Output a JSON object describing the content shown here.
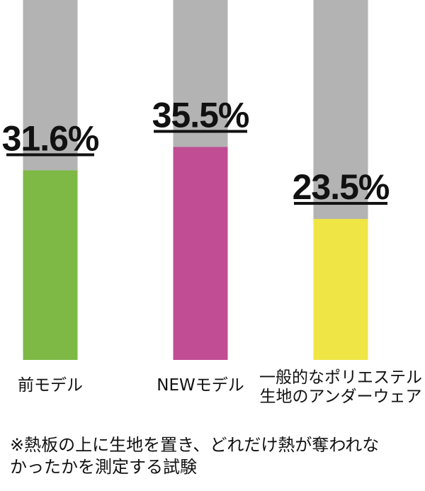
{
  "chart_data": {
    "type": "bar",
    "categories": [
      [
        "前モデル"
      ],
      [
        "NEWモデル"
      ],
      [
        "一般的なポリエステル",
        "生地のアンダーウェア"
      ]
    ],
    "values": [
      31.6,
      35.5,
      23.5
    ],
    "value_labels": [
      "31.6%",
      "35.5%",
      "23.5%"
    ],
    "ylim": [
      0,
      60
    ],
    "grid": false,
    "legend": "none",
    "colors": {
      "bars": [
        "#7db944",
        "#c14d94",
        "#efe646"
      ],
      "track": "#b3b3b3",
      "underline": "#111111"
    }
  },
  "footnote": {
    "lines": [
      "※熱板の上に生地を置き、どれだけ熱が奪われな",
      "かったかを測定する試験"
    ]
  }
}
